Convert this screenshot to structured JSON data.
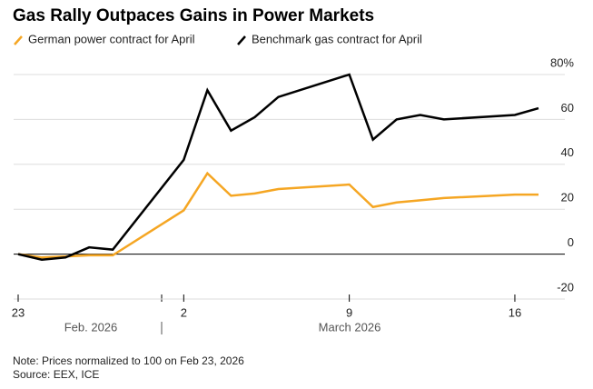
{
  "chart_data": {
    "type": "line",
    "title": "Gas Rally Outpaces Gains in Power Markets",
    "x": [
      "2026-02-23",
      "2026-02-24",
      "2026-02-25",
      "2026-02-26",
      "2026-02-27",
      "2026-03-02",
      "2026-03-03",
      "2026-03-04",
      "2026-03-05",
      "2026-03-06",
      "2026-03-09",
      "2026-03-10",
      "2026-03-11",
      "2026-03-12",
      "2026-03-13",
      "2026-03-16",
      "2026-03-17"
    ],
    "series": [
      {
        "name": "German power contract for April",
        "color": "#f5a623",
        "values": [
          0,
          -1.5,
          -1,
          -0.5,
          -0.5,
          19.5,
          36,
          26,
          27,
          29,
          31,
          21,
          23,
          24,
          25,
          26.5,
          26.5
        ]
      },
      {
        "name": "Benchmark gas contract for April",
        "color": "#000000",
        "values": [
          0,
          -2.5,
          -1.5,
          3,
          2,
          42,
          73,
          55,
          61,
          70,
          80,
          51,
          60,
          62,
          60,
          62,
          65
        ]
      }
    ],
    "xlim": [
      "2026-02-23",
      "2026-03-17"
    ],
    "xticks": [
      {
        "value": "2026-02-23",
        "label": "23"
      },
      {
        "value": "2026-03-02",
        "label": "2"
      },
      {
        "value": "2026-03-09",
        "label": "9"
      },
      {
        "value": "2026-03-16",
        "label": "16"
      }
    ],
    "month_labels": [
      "Feb. 2026",
      "March 2026"
    ],
    "ylim": [
      -20,
      80
    ],
    "yticks": [
      -20,
      0,
      20,
      40,
      60,
      {
        "value": 80,
        "label": "80%"
      }
    ],
    "grid": true,
    "note": "Note: Prices normalized to 100 on Feb 23, 2026",
    "source": "Source: EEX, ICE"
  }
}
